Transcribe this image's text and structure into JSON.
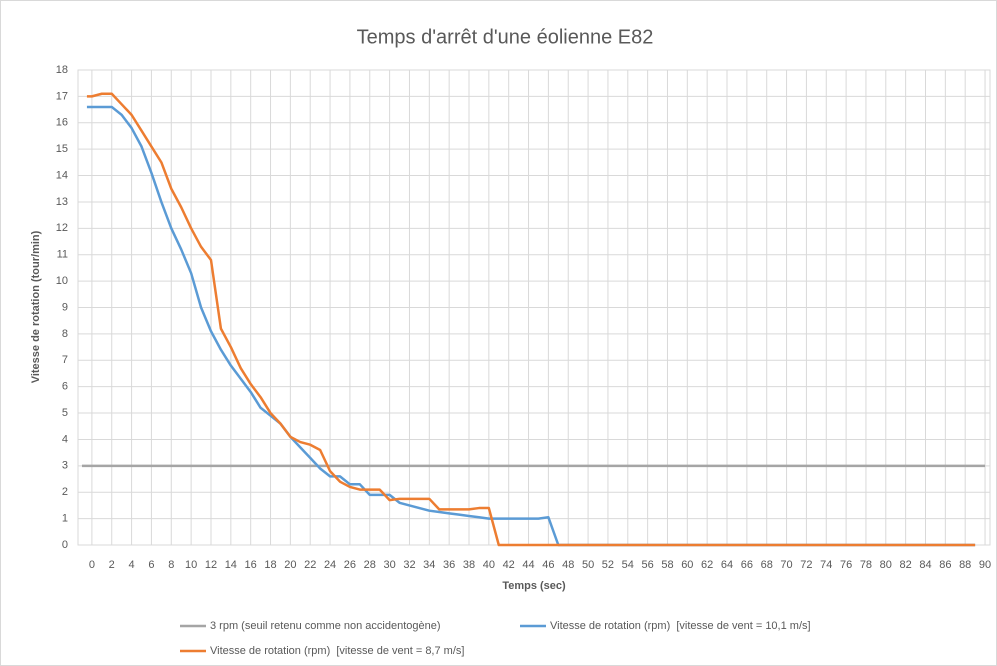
{
  "chart_data": {
    "type": "line",
    "title": "Temps d'arrêt d'une éolienne E82",
    "x_label": "Temps (sec)",
    "y_label": "Vitesse de rotation (tour/min)",
    "xlim": [
      -1.4,
      90.5
    ],
    "ylim": [
      0,
      18
    ],
    "xticks": [
      0,
      2,
      4,
      6,
      8,
      10,
      12,
      14,
      16,
      18,
      20,
      22,
      24,
      26,
      28,
      30,
      32,
      34,
      36,
      38,
      40,
      42,
      44,
      46,
      48,
      50,
      52,
      54,
      56,
      58,
      60,
      62,
      64,
      66,
      68,
      70,
      72,
      74,
      76,
      78,
      80,
      82,
      84,
      86,
      88,
      90
    ],
    "yticks": [
      0,
      1,
      2,
      3,
      4,
      5,
      6,
      7,
      8,
      9,
      10,
      11,
      12,
      13,
      14,
      15,
      16,
      17,
      18
    ],
    "grid": true,
    "legend": "bottom",
    "series": [
      {
        "name": "3 rpm (seuil retenu comme non accidentogène)",
        "color": "#a5a5a5",
        "x": [
          -1,
          90
        ],
        "values": [
          3,
          3
        ]
      },
      {
        "name": "Vitesse de rotation (rpm)  [vitesse de vent = 10,1 m/s]",
        "color": "#5b9bd5",
        "x": [
          -0.5,
          0,
          1,
          2,
          3,
          4,
          5,
          6,
          7,
          8,
          9,
          10,
          11,
          12,
          13,
          14,
          15,
          16,
          17,
          18,
          19,
          20,
          21,
          22,
          23,
          24,
          25,
          26,
          27,
          28,
          29,
          30,
          31,
          32,
          33,
          34,
          35,
          36,
          37,
          38,
          39,
          40,
          41,
          42,
          43,
          44,
          45,
          46,
          47,
          89
        ],
        "values": [
          16.6,
          16.6,
          16.6,
          16.6,
          16.3,
          15.8,
          15.1,
          14.1,
          13,
          12,
          11.2,
          10.3,
          9,
          8.1,
          7.4,
          6.8,
          6.3,
          5.8,
          5.2,
          4.9,
          4.6,
          4.1,
          3.7,
          3.3,
          2.9,
          2.6,
          2.6,
          2.3,
          2.3,
          1.9,
          1.9,
          1.9,
          1.6,
          1.5,
          1.4,
          1.3,
          1.25,
          1.2,
          1.15,
          1.1,
          1.05,
          1,
          1,
          1,
          1,
          1,
          1,
          1.05,
          0,
          0
        ]
      },
      {
        "name": "Vitesse de rotation (rpm)  [vitesse de vent = 8,7 m/s]",
        "color": "#ed7d31",
        "x": [
          -0.5,
          0,
          1,
          2,
          3,
          4,
          5,
          6,
          7,
          8,
          9,
          10,
          11,
          12,
          13,
          14,
          15,
          16,
          17,
          18,
          19,
          20,
          21,
          22,
          23,
          24,
          25,
          26,
          27,
          28,
          29,
          30,
          31,
          32,
          33,
          34,
          35,
          36,
          37,
          38,
          39,
          40,
          41,
          42,
          89
        ],
        "values": [
          17,
          17,
          17.1,
          17.1,
          16.7,
          16.3,
          15.7,
          15.1,
          14.5,
          13.5,
          12.8,
          12,
          11.3,
          10.8,
          8.2,
          7.5,
          6.7,
          6.1,
          5.6,
          5,
          4.6,
          4.1,
          3.9,
          3.8,
          3.6,
          2.8,
          2.4,
          2.2,
          2.1,
          2.1,
          2.1,
          1.7,
          1.75,
          1.75,
          1.75,
          1.75,
          1.35,
          1.35,
          1.35,
          1.35,
          1.4,
          1.4,
          0,
          0,
          0
        ]
      }
    ]
  }
}
